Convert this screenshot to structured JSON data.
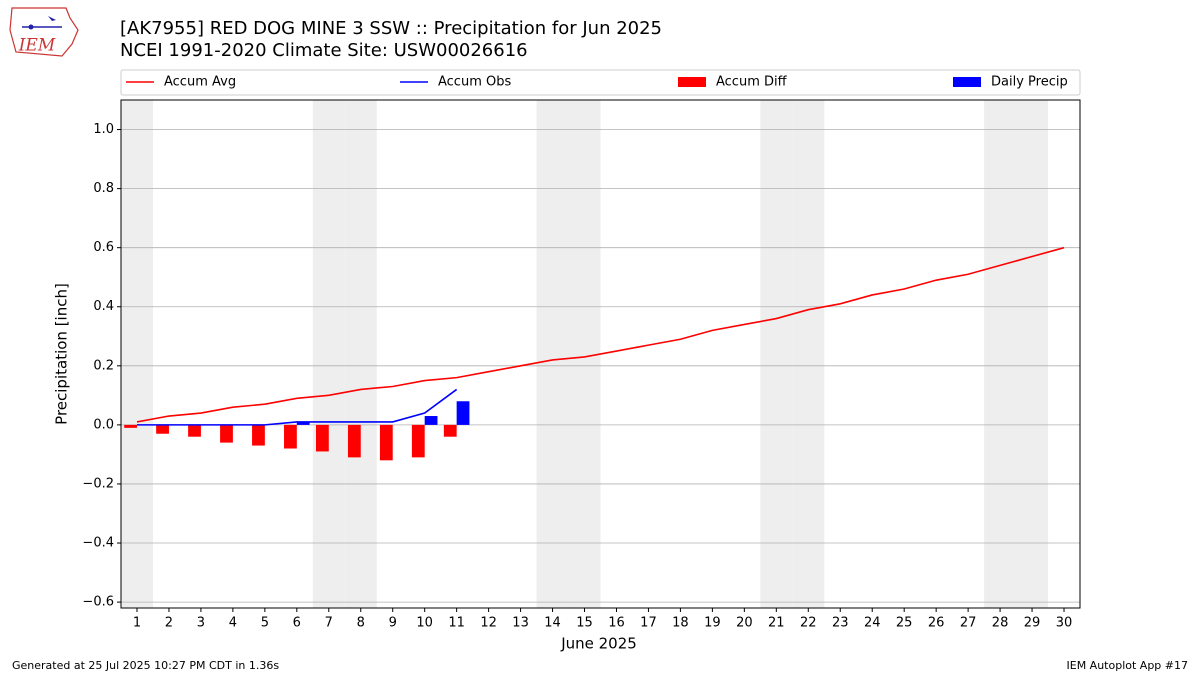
{
  "chart_data": {
    "type": "combo",
    "title": "[AK7955] RED DOG MINE 3 SSW :: Precipitation for Jun 2025",
    "subtitle": "NCEI 1991-2020 Climate Site: USW00026616",
    "logo_text": "IEM",
    "x_label": "June 2025",
    "y_label": "Precipitation [inch]",
    "footer_left": "Generated at 25 Jul 2025 10:27 PM CDT in 1.36s",
    "footer_right": "IEM Autoplot App #17",
    "x": [
      1,
      2,
      3,
      4,
      5,
      6,
      7,
      8,
      9,
      10,
      11,
      12,
      13,
      14,
      15,
      16,
      17,
      18,
      19,
      20,
      21,
      22,
      23,
      24,
      25,
      26,
      27,
      28,
      29,
      30
    ],
    "xlim": [
      0.5,
      30.5
    ],
    "xticks": [
      1,
      2,
      3,
      4,
      5,
      6,
      7,
      8,
      9,
      10,
      11,
      12,
      13,
      14,
      15,
      16,
      17,
      18,
      19,
      20,
      21,
      22,
      23,
      24,
      25,
      26,
      27,
      28,
      29,
      30
    ],
    "ylim": [
      -0.62,
      1.1
    ],
    "yticks": [
      {
        "value": -0.6,
        "label": "−0.6"
      },
      {
        "value": -0.4,
        "label": "−0.4"
      },
      {
        "value": -0.2,
        "label": "−0.2"
      },
      {
        "value": 0,
        "label": "0.0"
      },
      {
        "value": 0.2,
        "label": "0.2"
      },
      {
        "value": 0.4,
        "label": "0.4"
      },
      {
        "value": 0.6,
        "label": "0.6"
      },
      {
        "value": 0.8,
        "label": "0.8"
      },
      {
        "value": 1.0,
        "label": "1.0"
      }
    ],
    "grid": true,
    "shaded_days": [
      1,
      7,
      8,
      14,
      15,
      21,
      22,
      28,
      29
    ],
    "shade_color": "#eeeeee",
    "series": [
      {
        "name": "Accum Avg",
        "type": "line",
        "color": "#ff0000",
        "values": [
          0.01,
          0.03,
          0.04,
          0.06,
          0.07,
          0.09,
          0.1,
          0.12,
          0.13,
          0.15,
          0.16,
          0.18,
          0.2,
          0.22,
          0.23,
          0.25,
          0.27,
          0.29,
          0.32,
          0.34,
          0.36,
          0.39,
          0.41,
          0.44,
          0.46,
          0.49,
          0.51,
          0.54,
          0.57,
          0.6
        ]
      },
      {
        "name": "Accum Obs",
        "type": "line",
        "color": "#0000ff",
        "values": [
          0,
          0,
          0,
          0,
          0,
          0.01,
          0.01,
          0.01,
          0.01,
          0.04,
          0.12,
          null,
          null,
          null,
          null,
          null,
          null,
          null,
          null,
          null,
          null,
          null,
          null,
          null,
          null,
          null,
          null,
          null,
          null,
          null
        ]
      },
      {
        "name": "Accum Diff",
        "type": "bar",
        "color": "#ff0000",
        "values": [
          -0.01,
          -0.03,
          -0.04,
          -0.06,
          -0.07,
          -0.08,
          -0.09,
          -0.11,
          -0.12,
          -0.11,
          -0.04,
          null,
          null,
          null,
          null,
          null,
          null,
          null,
          null,
          null,
          null,
          null,
          null,
          null,
          null,
          null,
          null,
          null,
          null,
          null
        ]
      },
      {
        "name": "Daily Precip",
        "type": "bar",
        "color": "#0000ff",
        "values": [
          0,
          0,
          0,
          0,
          0,
          0.01,
          0,
          0,
          0,
          0.03,
          0.08,
          null,
          null,
          null,
          null,
          null,
          null,
          null,
          null,
          null,
          null,
          null,
          null,
          null,
          null,
          null,
          null,
          null,
          null,
          null
        ]
      }
    ]
  }
}
